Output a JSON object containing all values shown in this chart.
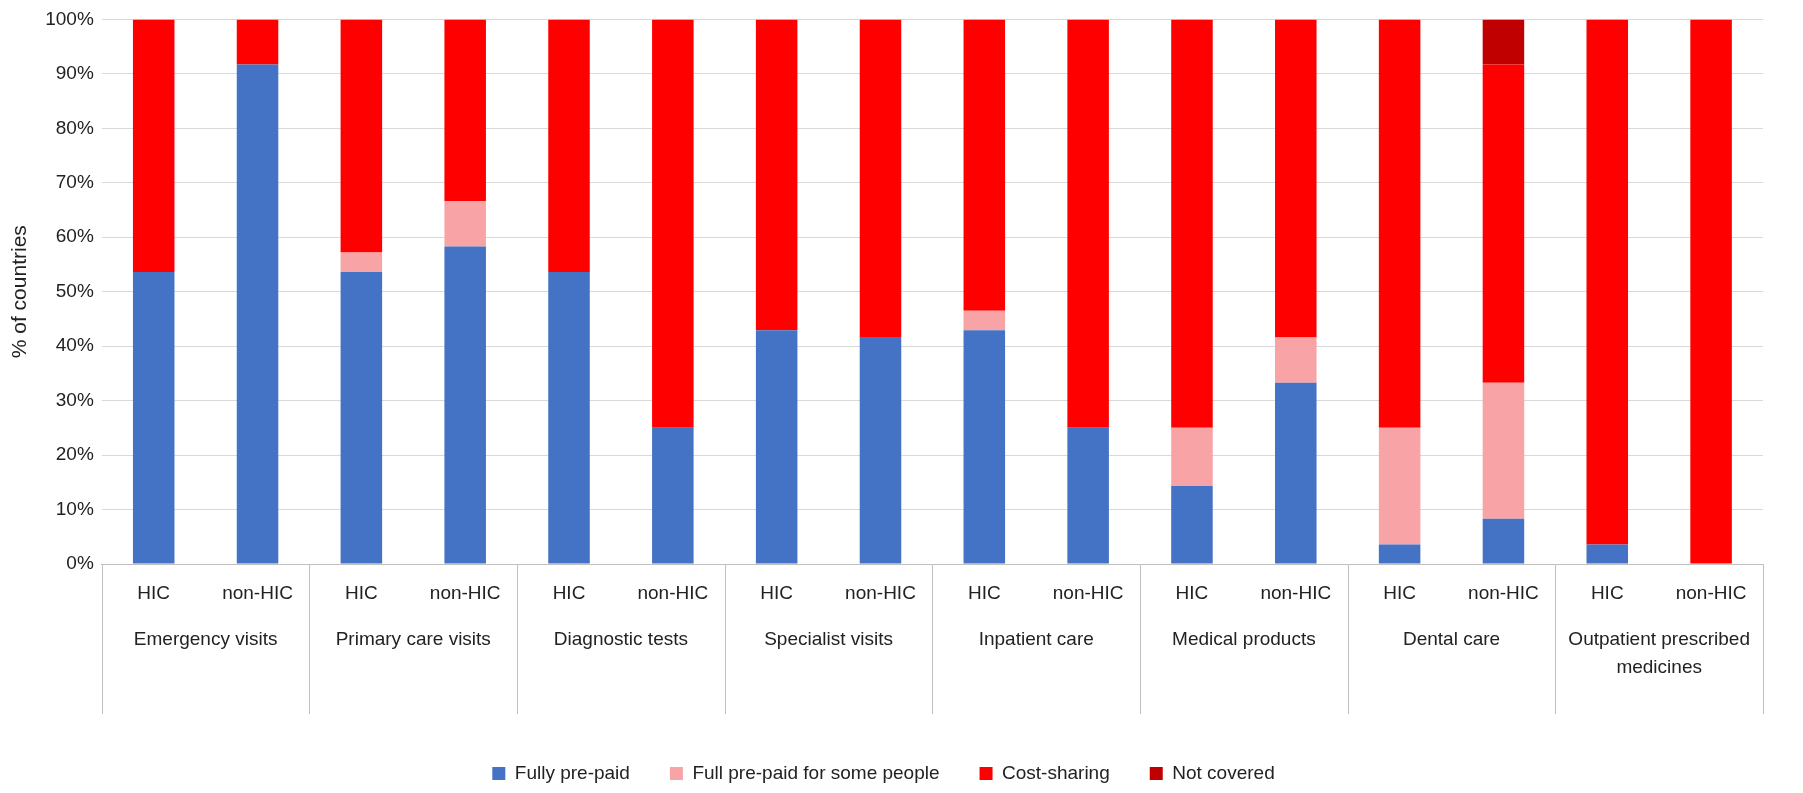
{
  "chart_data": {
    "type": "bar",
    "stacked": true,
    "ylabel": "% of countries",
    "categories": [
      "HIC",
      "non-HIC",
      "HIC",
      "non-HIC",
      "HIC",
      "non-HIC",
      "HIC",
      "non-HIC",
      "HIC",
      "non-HIC",
      "HIC",
      "non-HIC",
      "HIC",
      "non-HIC",
      "HIC",
      "non-HIC"
    ],
    "annotations": [
      "Emergency visits",
      "Primary care visits",
      "Diagnostic tests",
      "Specialist visits",
      "Inpatient care",
      "Medical products",
      "Dental care",
      "Outpatient prescribed medicines"
    ],
    "series": [
      {
        "name": "Fully pre-paid",
        "color": "#4472c4",
        "values": [
          53.6,
          91.7,
          53.6,
          58.3,
          53.6,
          25,
          42.9,
          41.7,
          42.9,
          25,
          14.3,
          33.3,
          3.6,
          8.3,
          3.6,
          0
        ]
      },
      {
        "name": "Full pre-paid for some people",
        "color": "#f8a3a6",
        "values": [
          0,
          0,
          3.6,
          8.3,
          0,
          0,
          0,
          0,
          3.6,
          0,
          10.7,
          8.3,
          21.4,
          25,
          0,
          0
        ]
      },
      {
        "name": "Cost-sharing",
        "color": "#ff0000",
        "values": [
          46.4,
          8.3,
          42.8,
          33.4,
          46.4,
          75,
          57.1,
          58.3,
          53.5,
          75,
          75,
          58.4,
          75,
          58.4,
          96.4,
          100
        ]
      },
      {
        "name": "Not covered",
        "color": "#c00000",
        "values": [
          0,
          0,
          0,
          0,
          0,
          0,
          0,
          0,
          0,
          0,
          0,
          0,
          0,
          8.3,
          0,
          0
        ]
      }
    ],
    "ylim": [
      0,
      100
    ],
    "yticks": [
      {
        "value": 0,
        "label": "0%"
      },
      {
        "value": 10,
        "label": "10%"
      },
      {
        "value": 20,
        "label": "20%"
      },
      {
        "value": 30,
        "label": "30%"
      },
      {
        "value": 40,
        "label": "40%"
      },
      {
        "value": 50,
        "label": "50%"
      },
      {
        "value": 60,
        "label": "60%"
      },
      {
        "value": 70,
        "label": "70%"
      },
      {
        "value": 80,
        "label": "80%"
      },
      {
        "value": 90,
        "label": "90%"
      },
      {
        "value": 100,
        "label": "100%"
      }
    ],
    "grid": "y",
    "legend": "bottom"
  }
}
